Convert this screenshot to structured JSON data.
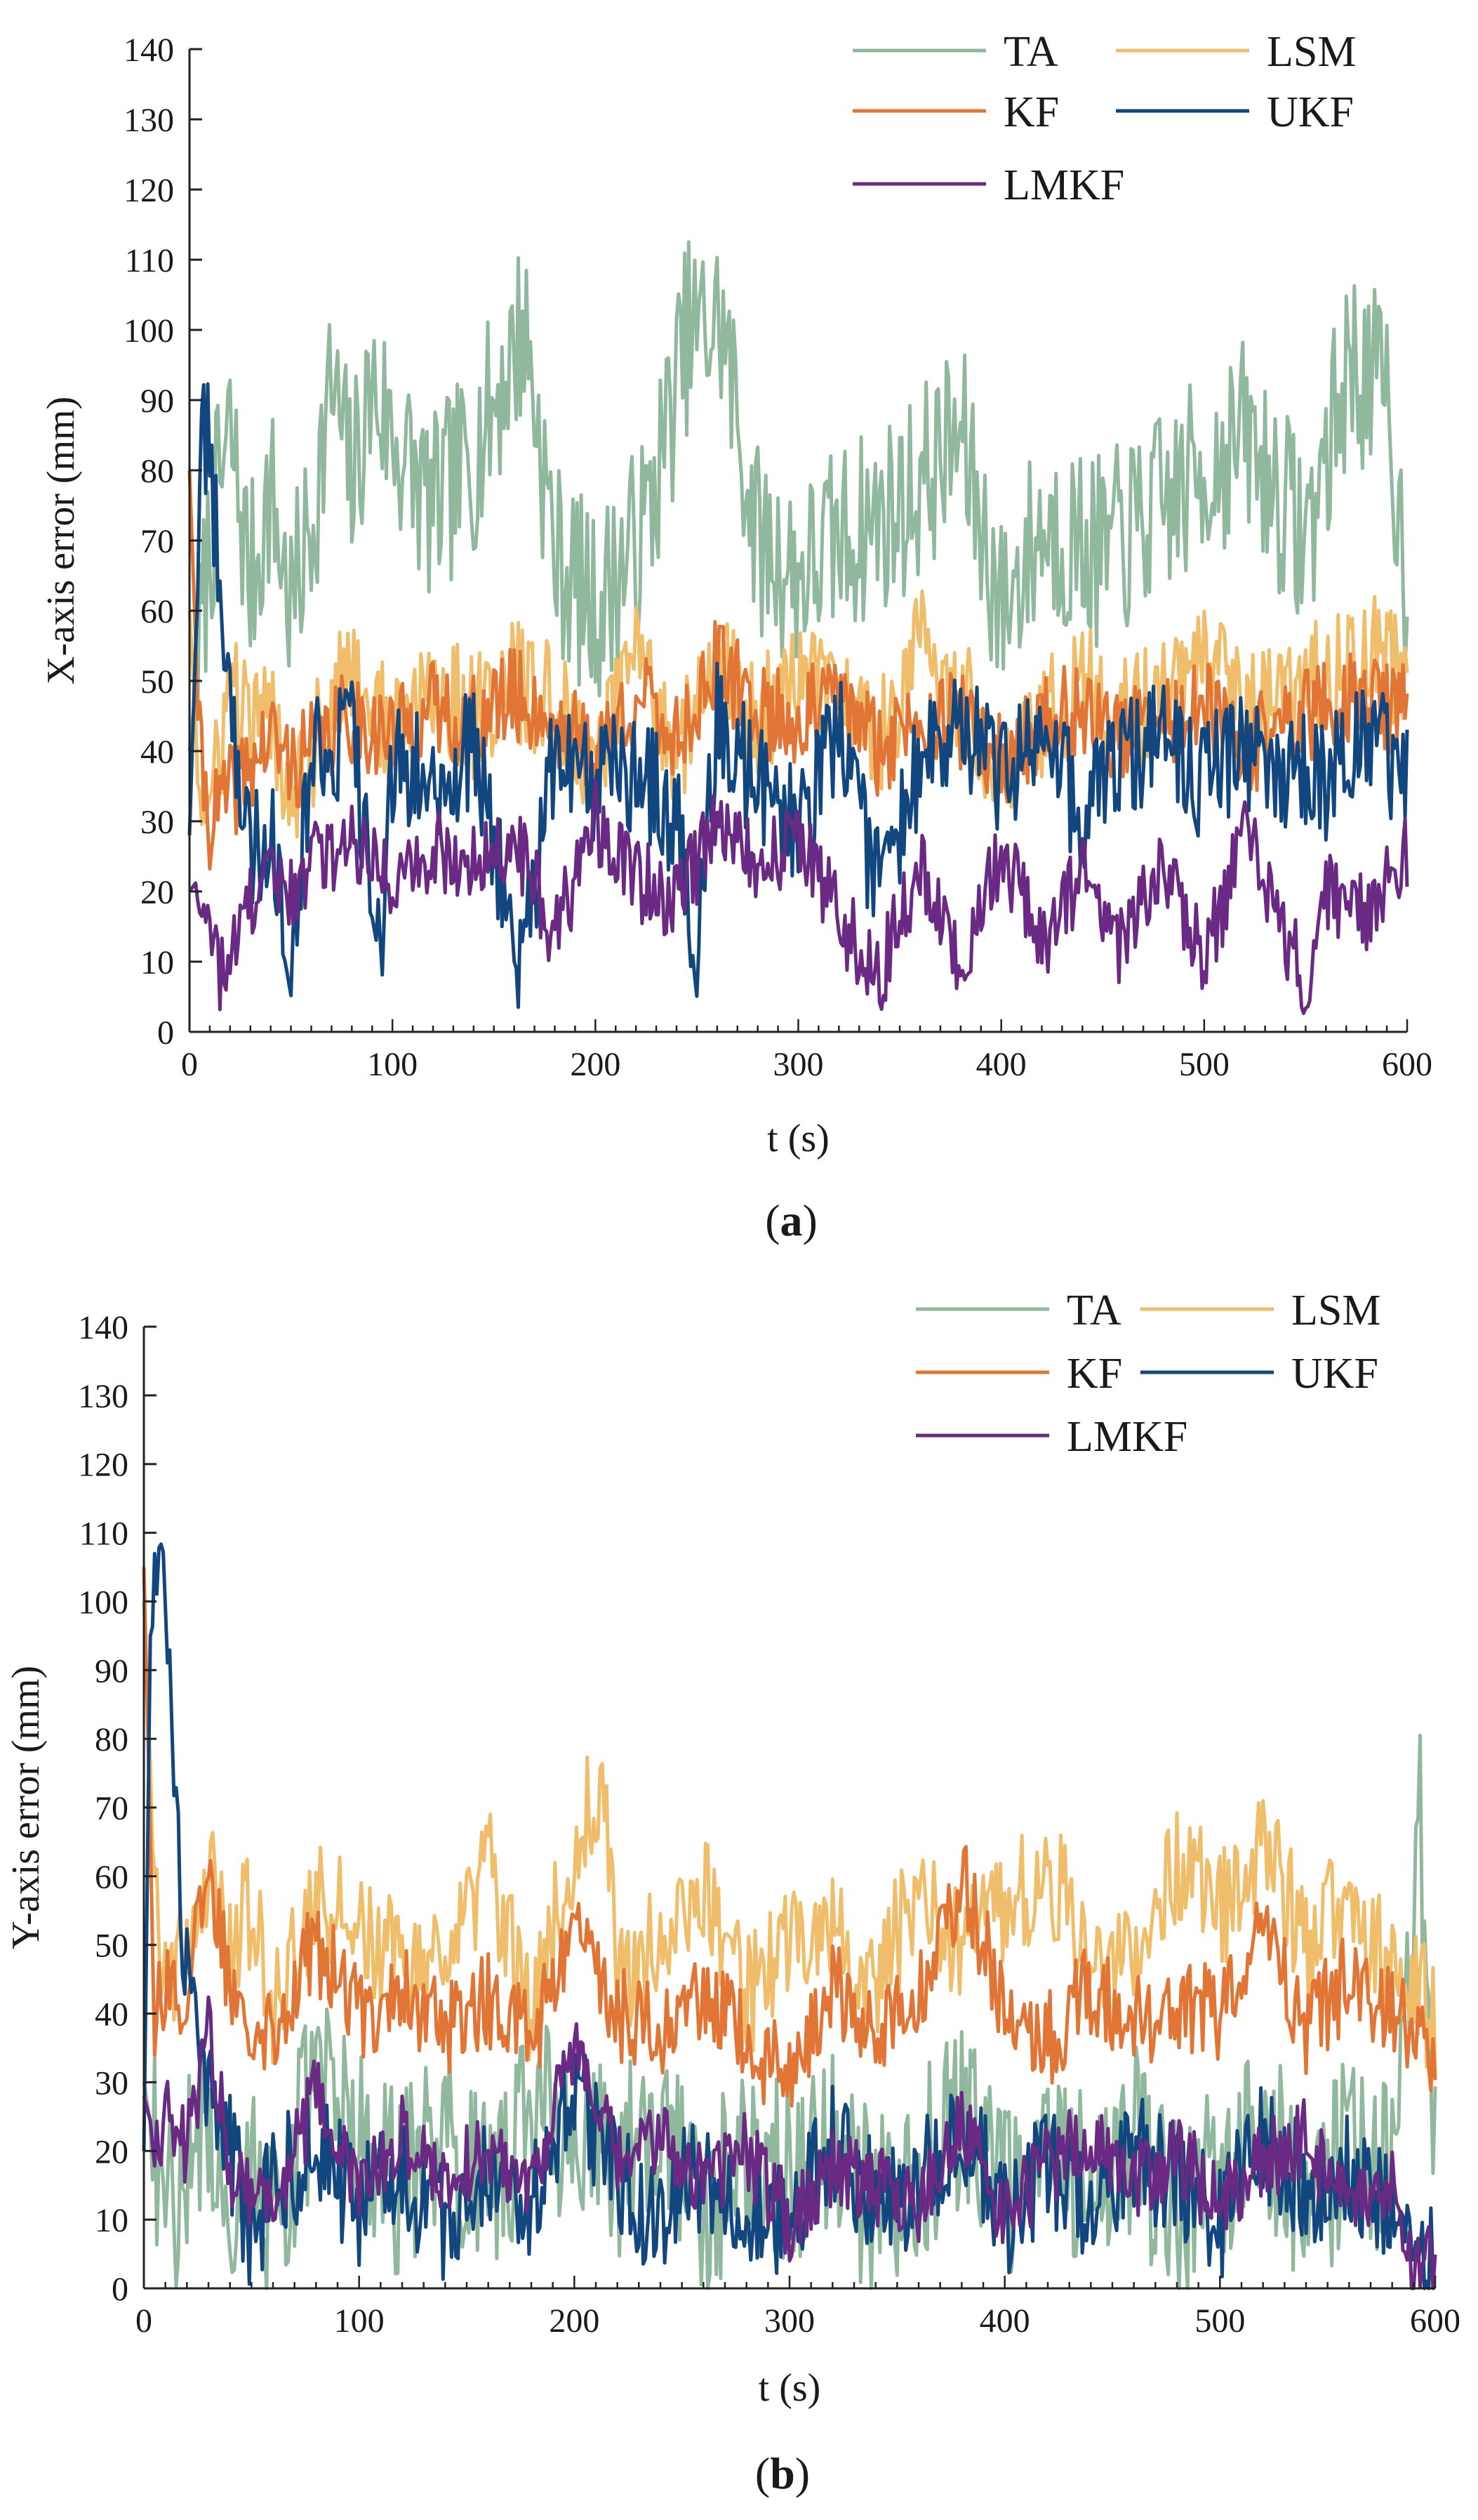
{
  "panels": [
    {
      "label_text": "a",
      "chart_data": {
        "type": "line",
        "title": "",
        "xlabel": "t (s)",
        "ylabel": "X-axis error (mm)",
        "xlim": [
          0,
          600
        ],
        "ylim": [
          0,
          140
        ],
        "xticks": [
          0,
          100,
          200,
          300,
          400,
          500,
          600
        ],
        "yticks": [
          0,
          10,
          20,
          30,
          40,
          50,
          60,
          70,
          80,
          90,
          100,
          110,
          120,
          130,
          140
        ],
        "grid": false,
        "legend_position": "top-right",
        "legend_layout": [
          [
            "TA",
            "LSM"
          ],
          [
            "KF",
            "UKF"
          ],
          [
            "LMKF"
          ]
        ],
        "series": [
          {
            "name": "TA",
            "color": "#8fb89c",
            "x": [
              0,
              10,
              20,
              30,
              40,
              50,
              60,
              70,
              80,
              90,
              100,
              120,
              140,
              165,
              180,
              200,
              225,
              245,
              262,
              280,
              300,
              320,
              350,
              380,
              400,
              420,
              450,
              480,
              500,
              520,
              550,
              572,
              590,
              600
            ],
            "y": [
              40,
              70,
              85,
              64,
              77,
              60,
              72,
              92,
              78,
              92,
              85,
              74,
              82,
              101,
              68,
              60,
              72,
              99,
              101,
              70,
              65,
              70,
              75,
              85,
              60,
              72,
              68,
              75,
              80,
              85,
              70,
              96,
              90,
              62
            ]
          },
          {
            "name": "LSM",
            "color": "#f0bd6a",
            "x": [
              0,
              5,
              10,
              20,
              30,
              40,
              50,
              60,
              80,
              100,
              120,
              140,
              160,
              180,
              200,
              220,
              240,
              260,
              280,
              300,
              320,
              340,
              360,
              380,
              400,
              420,
              440,
              460,
              480,
              500,
              520,
              540,
              560,
              580,
              600
            ],
            "y": [
              60,
              35,
              30,
              50,
              42,
              45,
              35,
              40,
              52,
              42,
              48,
              45,
              50,
              46,
              38,
              55,
              40,
              52,
              44,
              50,
              47,
              42,
              55,
              48,
              38,
              45,
              50,
              44,
              48,
              52,
              45,
              48,
              50,
              55,
              50
            ]
          },
          {
            "name": "KF",
            "color": "#e07536",
            "x": [
              0,
              5,
              10,
              20,
              30,
              40,
              50,
              60,
              80,
              100,
              120,
              140,
              160,
              180,
              200,
              220,
              240,
              260,
              280,
              300,
              320,
              340,
              360,
              380,
              400,
              420,
              440,
              460,
              480,
              500,
              520,
              540,
              560,
              580,
              600
            ],
            "y": [
              80,
              40,
              30,
              34,
              38,
              42,
              38,
              40,
              45,
              42,
              46,
              44,
              48,
              44,
              40,
              48,
              42,
              52,
              46,
              44,
              48,
              40,
              46,
              44,
              38,
              44,
              46,
              42,
              44,
              46,
              40,
              44,
              46,
              48,
              45
            ]
          },
          {
            "name": "UKF",
            "color": "#12467e",
            "x": [
              0,
              3,
              6,
              10,
              15,
              20,
              25,
              30,
              40,
              50,
              60,
              80,
              95,
              100,
              120,
              140,
              160,
              163,
              180,
              200,
              220,
              240,
              250,
              260,
              280,
              300,
              320,
              340,
              360,
              380,
              400,
              420,
              440,
              460,
              480,
              500,
              520,
              540,
              560,
              580,
              600
            ],
            "y": [
              28,
              55,
              88,
              82,
              65,
              50,
              35,
              25,
              30,
              12,
              40,
              42,
              9,
              38,
              36,
              40,
              15,
              8,
              40,
              35,
              38,
              30,
              12,
              45,
              35,
              28,
              42,
              20,
              38,
              44,
              36,
              40,
              32,
              38,
              42,
              36,
              40,
              38,
              35,
              42,
              36
            ]
          },
          {
            "name": "LMKF",
            "color": "#6a2a84",
            "x": [
              0,
              5,
              10,
              15,
              20,
              30,
              40,
              50,
              60,
              80,
              100,
              120,
              140,
              160,
              180,
              200,
              220,
              240,
              260,
              280,
              300,
              320,
              340,
              360,
              380,
              400,
              420,
              440,
              460,
              480,
              500,
              520,
              540,
              550,
              560,
              580,
              600
            ],
            "y": [
              20,
              22,
              14,
              8,
              12,
              18,
              22,
              20,
              24,
              28,
              22,
              26,
              24,
              28,
              14,
              30,
              22,
              18,
              30,
              24,
              28,
              16,
              8,
              24,
              8,
              26,
              12,
              22,
              12,
              24,
              10,
              28,
              14,
              6,
              20,
              16,
              26
            ]
          }
        ]
      }
    },
    {
      "label_text": "b",
      "chart_data": {
        "type": "line",
        "title": "",
        "xlabel": "t (s)",
        "ylabel": "Y-axis error (mm)",
        "xlim": [
          0,
          600
        ],
        "ylim": [
          0,
          140
        ],
        "xticks": [
          0,
          100,
          200,
          300,
          400,
          500,
          600
        ],
        "yticks": [
          0,
          10,
          20,
          30,
          40,
          50,
          60,
          70,
          80,
          90,
          100,
          110,
          120,
          130,
          140
        ],
        "grid": false,
        "legend_position": "top-right",
        "legend_layout": [
          [
            "TA",
            "LSM"
          ],
          [
            "KF",
            "UKF"
          ],
          [
            "LMKF"
          ]
        ],
        "series": [
          {
            "name": "TA",
            "color": "#8fb89c",
            "x": [
              0,
              10,
              20,
              30,
              40,
              50,
              60,
              80,
              100,
              120,
              140,
              160,
              180,
              200,
              220,
              240,
              260,
              280,
              300,
              320,
              340,
              360,
              380,
              400,
              420,
              440,
              460,
              480,
              500,
              520,
              540,
              560,
              580,
              593,
              600
            ],
            "y": [
              30,
              10,
              18,
              25,
              12,
              20,
              8,
              30,
              22,
              15,
              25,
              12,
              28,
              20,
              18,
              25,
              12,
              20,
              15,
              22,
              10,
              18,
              25,
              12,
              20,
              15,
              22,
              10,
              18,
              25,
              12,
              20,
              15,
              68,
              20
            ]
          },
          {
            "name": "LSM",
            "color": "#f0bd6a",
            "x": [
              0,
              5,
              10,
              20,
              30,
              40,
              50,
              60,
              80,
              100,
              120,
              140,
              160,
              180,
              200,
              213,
              220,
              240,
              260,
              280,
              300,
              320,
              340,
              360,
              380,
              400,
              420,
              440,
              460,
              480,
              500,
              520,
              540,
              560,
              580,
              600
            ],
            "y": [
              100,
              60,
              45,
              50,
              62,
              50,
              55,
              40,
              58,
              52,
              48,
              45,
              62,
              40,
              65,
              75,
              45,
              50,
              58,
              42,
              50,
              52,
              45,
              58,
              48,
              55,
              60,
              50,
              45,
              62,
              55,
              65,
              50,
              58,
              45,
              40
            ]
          },
          {
            "name": "KF",
            "color": "#e07536",
            "x": [
              0,
              5,
              10,
              20,
              30,
              40,
              50,
              60,
              80,
              100,
              120,
              140,
              160,
              180,
              200,
              220,
              240,
              260,
              280,
              300,
              320,
              340,
              360,
              380,
              400,
              420,
              440,
              460,
              480,
              500,
              520,
              540,
              560,
              580,
              600
            ],
            "y": [
              105,
              40,
              45,
              42,
              60,
              45,
              40,
              38,
              50,
              40,
              44,
              38,
              42,
              36,
              52,
              40,
              38,
              42,
              36,
              30,
              44,
              38,
              42,
              60,
              40,
              36,
              44,
              38,
              42,
              40,
              52,
              38,
              45,
              40,
              35
            ]
          },
          {
            "name": "UKF",
            "color": "#12467e",
            "x": [
              0,
              3,
              6,
              10,
              15,
              20,
              30,
              40,
              50,
              60,
              80,
              100,
              120,
              140,
              160,
              180,
              200,
              220,
              240,
              260,
              280,
              300,
              320,
              340,
              360,
              380,
              400,
              420,
              440,
              460,
              480,
              500,
              520,
              540,
              560,
              580,
              600
            ],
            "y": [
              20,
              95,
              110,
              100,
              65,
              45,
              30,
              20,
              8,
              15,
              20,
              12,
              16,
              10,
              18,
              12,
              30,
              15,
              10,
              18,
              12,
              8,
              22,
              12,
              15,
              25,
              10,
              18,
              12,
              20,
              15,
              10,
              22,
              14,
              18,
              10,
              5
            ]
          },
          {
            "name": "LMKF",
            "color": "#6a2a84",
            "x": [
              0,
              5,
              10,
              20,
              30,
              40,
              50,
              60,
              80,
              100,
              120,
              140,
              160,
              180,
              200,
              220,
              240,
              260,
              280,
              300,
              320,
              340,
              360,
              380,
              400,
              420,
              440,
              460,
              480,
              500,
              520,
              540,
              560,
              580,
              590,
              600
            ],
            "y": [
              28,
              22,
              25,
              20,
              38,
              18,
              15,
              12,
              28,
              14,
              22,
              16,
              20,
              16,
              35,
              18,
              22,
              16,
              20,
              10,
              18,
              15,
              12,
              24,
              10,
              18,
              22,
              15,
              20,
              12,
              18,
              22,
              10,
              15,
              2,
              5
            ]
          }
        ]
      }
    }
  ]
}
